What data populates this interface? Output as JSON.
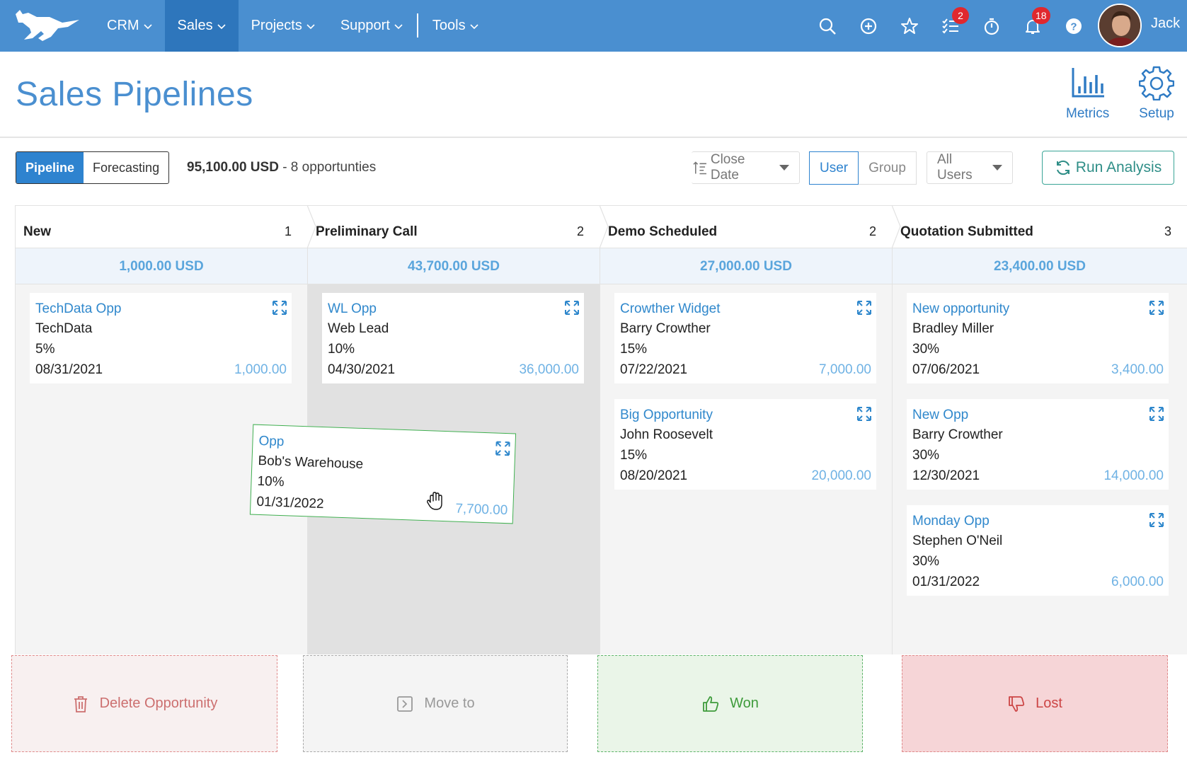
{
  "nav": {
    "menu": [
      {
        "label": "CRM",
        "active": false
      },
      {
        "label": "Sales",
        "active": true
      },
      {
        "label": "Projects",
        "active": false
      },
      {
        "label": "Support",
        "active": false
      },
      {
        "label": "Tools",
        "active": false
      }
    ],
    "icons": [
      "search-icon",
      "add-icon",
      "star-icon",
      "tasks-icon",
      "timer-icon",
      "bell-icon",
      "help-icon"
    ],
    "tasks_badge": "2",
    "notifications_badge": "18",
    "user_name": "Jack",
    "brand_color": "#4a8fd0",
    "active_color": "#2e76bc"
  },
  "header": {
    "title": "Sales Pipelines",
    "metrics_label": "Metrics",
    "setup_label": "Setup"
  },
  "toolbar": {
    "pipeline_label": "Pipeline",
    "forecasting_label": "Forecasting",
    "total": "95,100.00 USD",
    "opportunities_text": " - 8 opportunties",
    "sort_label": "Close Date",
    "user_label": "User",
    "group_label": "Group",
    "users_filter": "All Users",
    "run_label": "Run Analysis"
  },
  "columns": [
    {
      "title": "New",
      "count": "1",
      "total": "1,000.00 USD",
      "cards": [
        {
          "title": "TechData Opp",
          "company": "TechData",
          "pct": "5%",
          "date": "08/31/2021",
          "amount": "1,000.00"
        }
      ]
    },
    {
      "title": "Preliminary Call",
      "count": "2",
      "total": "43,700.00 USD",
      "cards": [
        {
          "title": "WL Opp",
          "company": "Web Lead",
          "pct": "10%",
          "date": "04/30/2021",
          "amount": "36,000.00"
        }
      ]
    },
    {
      "title": "Demo Scheduled",
      "count": "2",
      "total": "27,000.00 USD",
      "cards": [
        {
          "title": "Crowther Widget",
          "company": "Barry Crowther",
          "pct": "15%",
          "date": "07/22/2021",
          "amount": "7,000.00"
        },
        {
          "title": "Big Opportunity",
          "company": "John Roosevelt",
          "pct": "15%",
          "date": "08/20/2021",
          "amount": "20,000.00"
        }
      ]
    },
    {
      "title": "Quotation Submitted",
      "count": "3",
      "total": "23,400.00 USD",
      "cards": [
        {
          "title": "New opportunity",
          "company": "Bradley Miller",
          "pct": "30%",
          "date": "07/06/2021",
          "amount": "3,400.00"
        },
        {
          "title": "New Opp",
          "company": "Barry Crowther",
          "pct": "30%",
          "date": "12/30/2021",
          "amount": "14,000.00"
        },
        {
          "title": "Monday Opp",
          "company": "Stephen O'Neil",
          "pct": "30%",
          "date": "01/31/2022",
          "amount": "6,000.00"
        }
      ]
    }
  ],
  "dragging_card": {
    "title": "Opp",
    "company": "Bob's Warehouse",
    "pct": "10%",
    "date": "01/31/2022",
    "amount": "7,700.00"
  },
  "drop_zones": {
    "delete_label": "Delete Opportunity",
    "move_label": "Move to",
    "won_label": "Won",
    "lost_label": "Lost"
  }
}
